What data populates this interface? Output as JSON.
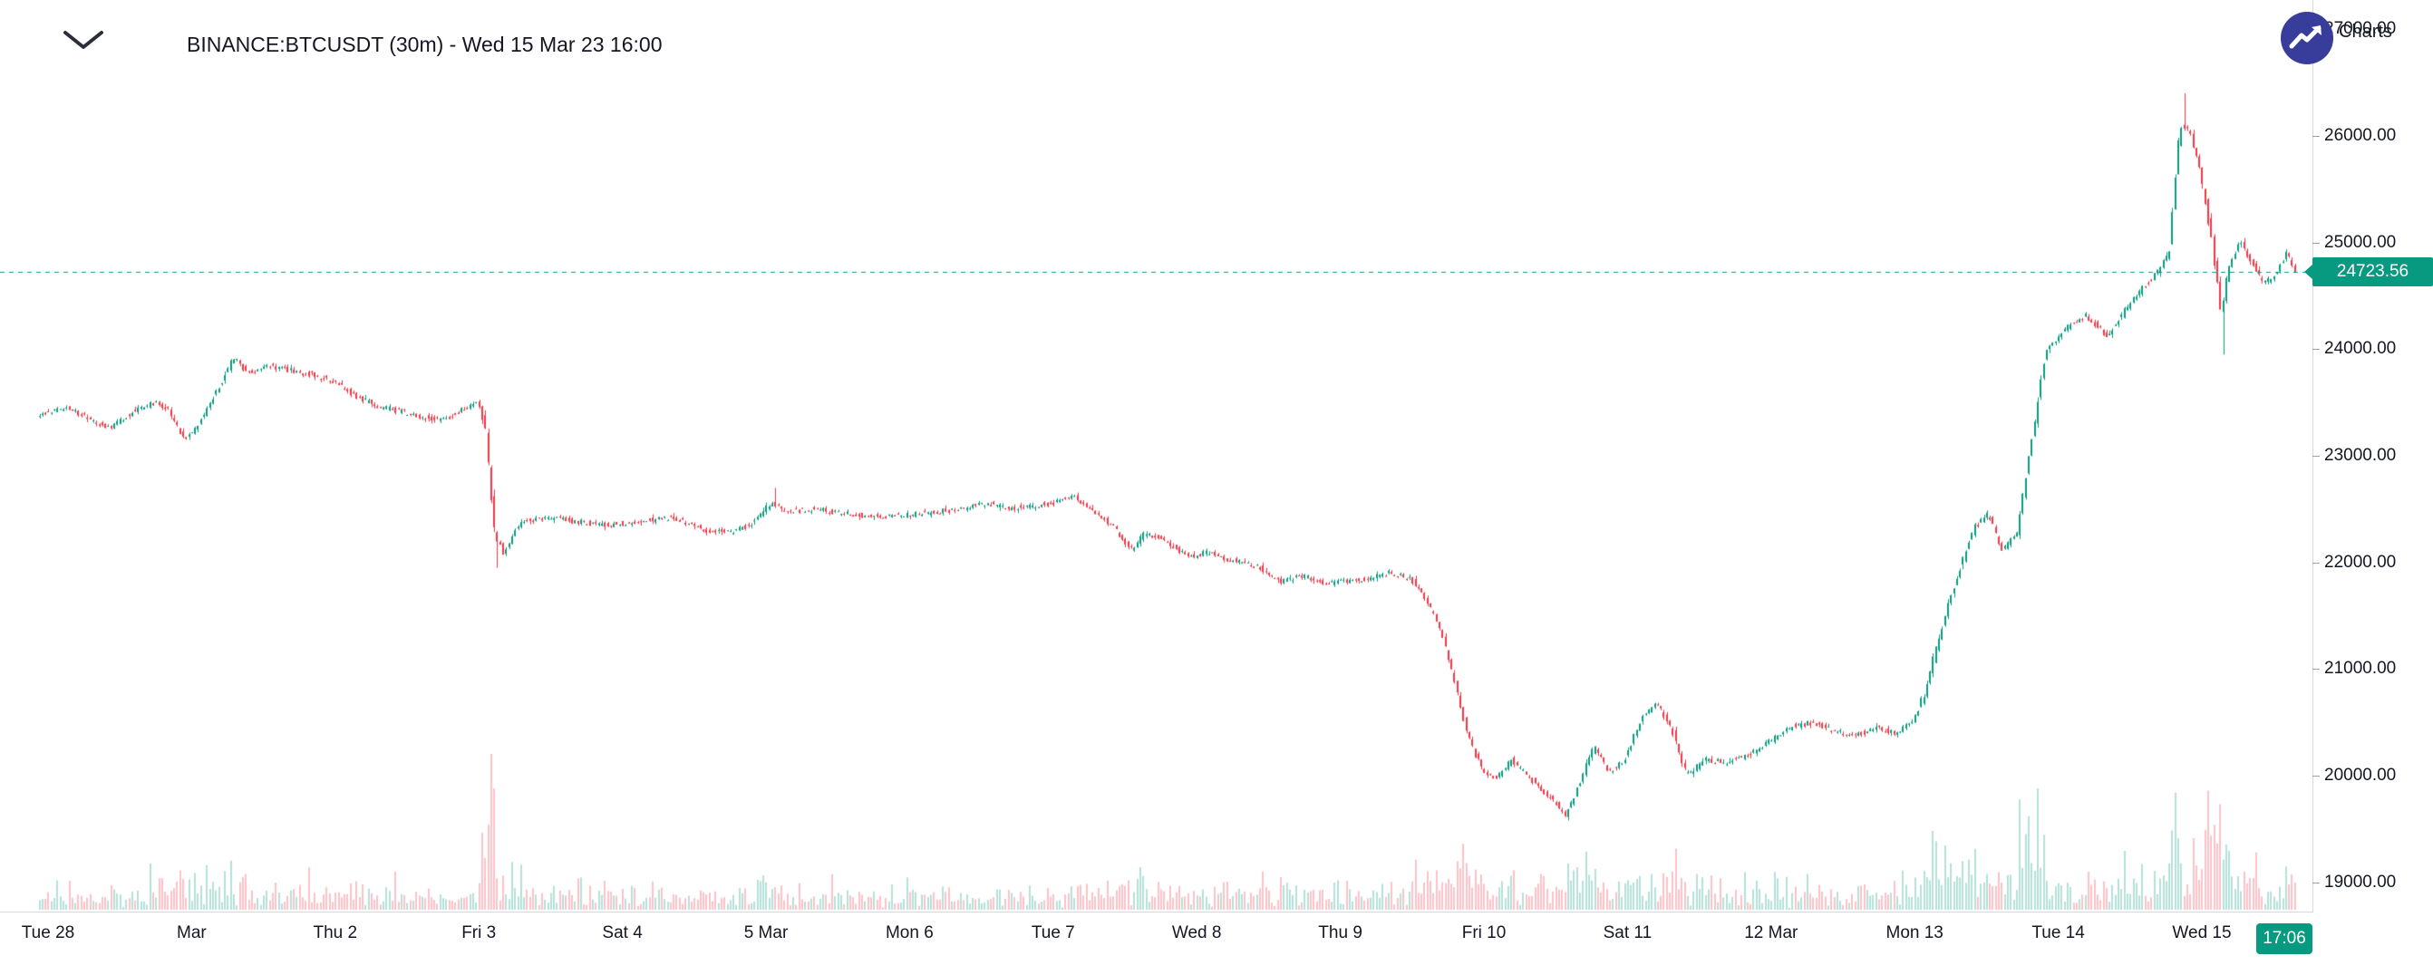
{
  "header": {
    "title": "BINANCE:BTCUSDT (30m) - Wed 15 Mar 23 16:00"
  },
  "watermark": {
    "text": "Charts"
  },
  "price_scale": {
    "last_price_label": "24723.56",
    "ticks": [
      {
        "label": "27000.00",
        "price": 27000
      },
      {
        "label": "26000.00",
        "price": 26000
      },
      {
        "label": "25000.00",
        "price": 25000
      },
      {
        "label": "24000.00",
        "price": 24000
      },
      {
        "label": "23000.00",
        "price": 23000
      },
      {
        "label": "22000.00",
        "price": 22000
      },
      {
        "label": "21000.00",
        "price": 21000
      },
      {
        "label": "20000.00",
        "price": 20000
      },
      {
        "label": "19000.00",
        "price": 19000
      }
    ]
  },
  "time_scale": {
    "countdown": "17:06",
    "labels": [
      "Tue 28",
      "Mar",
      "Thu 2",
      "Fri 3",
      "Sat 4",
      "5 Mar",
      "Mon 6",
      "Tue 7",
      "Wed 8",
      "Thu 9",
      "Fri 10",
      "Sat 11",
      "12 Mar",
      "Mon 13",
      "Tue 14",
      "Wed 15"
    ]
  },
  "chart_data": {
    "type": "candlestick",
    "symbol": "BINANCE:BTCUSDT",
    "interval": "30m",
    "as_of": "Wed 15 Mar 23 16:00",
    "title": "BINANCE:BTCUSDT (30m) - Wed 15 Mar 23 16:00",
    "last_price": 24723.56,
    "visible_high": 26400,
    "visible_low": 19580,
    "y_axis": {
      "range": [
        18725,
        27150
      ],
      "tick_step": 1000,
      "ticks": [
        19000,
        20000,
        21000,
        22000,
        23000,
        24000,
        25000,
        26000,
        27000
      ]
    },
    "x_axis": {
      "tick_labels": [
        "Tue 28",
        "Mar",
        "Thu 2",
        "Fri 3",
        "Sat 4",
        "5 Mar",
        "Mon 6",
        "Tue 7",
        "Wed 8",
        "Thu 9",
        "Fri 10",
        "Sat 11",
        "12 Mar",
        "Mon 13",
        "Tue 14",
        "Wed 15"
      ]
    },
    "start_day": -0.07,
    "end_day": 15.67,
    "bar_interval_days": 0.02083333,
    "price_path_anchors": [
      [
        -0.07,
        23380
      ],
      [
        0.15,
        23460
      ],
      [
        0.3,
        23340
      ],
      [
        0.45,
        23260
      ],
      [
        0.6,
        23420
      ],
      [
        0.75,
        23500
      ],
      [
        0.85,
        23430
      ],
      [
        0.95,
        23150
      ],
      [
        1.05,
        23280
      ],
      [
        1.2,
        23650
      ],
      [
        1.3,
        23920
      ],
      [
        1.4,
        23780
      ],
      [
        1.55,
        23850
      ],
      [
        1.7,
        23800
      ],
      [
        1.85,
        23760
      ],
      [
        2.0,
        23700
      ],
      [
        2.15,
        23560
      ],
      [
        2.3,
        23470
      ],
      [
        2.45,
        23420
      ],
      [
        2.6,
        23370
      ],
      [
        2.75,
        23330
      ],
      [
        2.9,
        23440
      ],
      [
        3.0,
        23490
      ],
      [
        3.05,
        23300
      ],
      [
        3.12,
        22250
      ],
      [
        3.18,
        22100
      ],
      [
        3.3,
        22380
      ],
      [
        3.5,
        22420
      ],
      [
        3.7,
        22380
      ],
      [
        3.9,
        22350
      ],
      [
        4.1,
        22380
      ],
      [
        4.35,
        22420
      ],
      [
        4.6,
        22300
      ],
      [
        4.75,
        22280
      ],
      [
        4.9,
        22350
      ],
      [
        5.05,
        22560
      ],
      [
        5.15,
        22480
      ],
      [
        5.35,
        22500
      ],
      [
        5.6,
        22450
      ],
      [
        5.85,
        22430
      ],
      [
        6.1,
        22460
      ],
      [
        6.35,
        22500
      ],
      [
        6.55,
        22560
      ],
      [
        6.7,
        22500
      ],
      [
        6.85,
        22530
      ],
      [
        7.0,
        22550
      ],
      [
        7.15,
        22620
      ],
      [
        7.3,
        22480
      ],
      [
        7.45,
        22300
      ],
      [
        7.55,
        22120
      ],
      [
        7.65,
        22280
      ],
      [
        7.8,
        22200
      ],
      [
        7.95,
        22050
      ],
      [
        8.1,
        22100
      ],
      [
        8.25,
        22020
      ],
      [
        8.45,
        21950
      ],
      [
        8.6,
        21820
      ],
      [
        8.75,
        21880
      ],
      [
        8.9,
        21800
      ],
      [
        9.05,
        21820
      ],
      [
        9.2,
        21850
      ],
      [
        9.35,
        21900
      ],
      [
        9.5,
        21850
      ],
      [
        9.6,
        21650
      ],
      [
        9.7,
        21400
      ],
      [
        9.8,
        20900
      ],
      [
        9.9,
        20350
      ],
      [
        10.0,
        20050
      ],
      [
        10.1,
        19980
      ],
      [
        10.2,
        20150
      ],
      [
        10.35,
        19950
      ],
      [
        10.5,
        19750
      ],
      [
        10.58,
        19620
      ],
      [
        10.68,
        19950
      ],
      [
        10.78,
        20280
      ],
      [
        10.88,
        20020
      ],
      [
        11.0,
        20180
      ],
      [
        11.12,
        20580
      ],
      [
        11.22,
        20680
      ],
      [
        11.32,
        20420
      ],
      [
        11.42,
        20000
      ],
      [
        11.55,
        20150
      ],
      [
        11.7,
        20120
      ],
      [
        11.85,
        20200
      ],
      [
        12.0,
        20320
      ],
      [
        12.15,
        20460
      ],
      [
        12.3,
        20500
      ],
      [
        12.45,
        20420
      ],
      [
        12.6,
        20380
      ],
      [
        12.75,
        20450
      ],
      [
        12.88,
        20400
      ],
      [
        13.0,
        20520
      ],
      [
        13.08,
        20780
      ],
      [
        13.18,
        21300
      ],
      [
        13.3,
        21850
      ],
      [
        13.42,
        22320
      ],
      [
        13.52,
        22450
      ],
      [
        13.62,
        22120
      ],
      [
        13.72,
        22280
      ],
      [
        13.82,
        23100
      ],
      [
        13.92,
        23980
      ],
      [
        14.05,
        24180
      ],
      [
        14.2,
        24320
      ],
      [
        14.35,
        24120
      ],
      [
        14.5,
        24420
      ],
      [
        14.65,
        24650
      ],
      [
        14.78,
        24880
      ],
      [
        14.86,
        26120
      ],
      [
        14.92,
        26050
      ],
      [
        15.0,
        25650
      ],
      [
        15.08,
        25000
      ],
      [
        15.14,
        24350
      ],
      [
        15.2,
        24780
      ],
      [
        15.28,
        25020
      ],
      [
        15.36,
        24800
      ],
      [
        15.44,
        24620
      ],
      [
        15.52,
        24700
      ],
      [
        15.6,
        24900
      ],
      [
        15.67,
        24723.56
      ]
    ],
    "wick_extremes": [
      {
        "day": 14.86,
        "high": 26400
      },
      {
        "day": 10.57,
        "low": 19580
      },
      {
        "day": 15.14,
        "low": 23950
      },
      {
        "day": 5.05,
        "high": 22700
      },
      {
        "day": 3.12,
        "low": 21950
      }
    ],
    "colors": {
      "up": "#089981",
      "down": "#f23645",
      "last_price_line": "#089981"
    },
    "volume_colors": {
      "up": "rgba(8,153,129,0.30)",
      "down": "rgba(242,54,69,0.30)"
    }
  }
}
